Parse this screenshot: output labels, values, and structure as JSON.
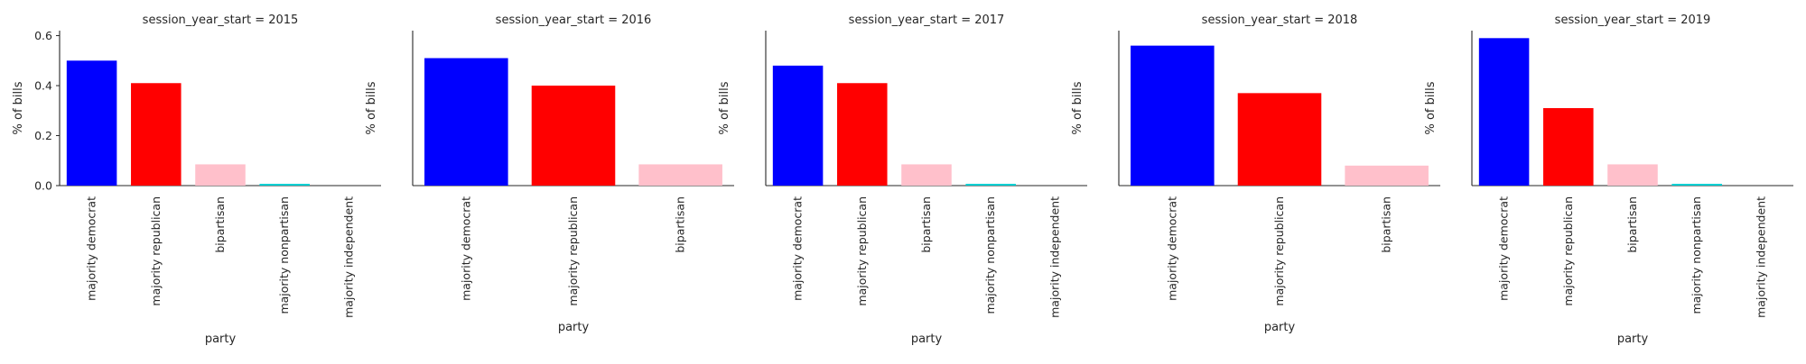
{
  "chart_data": [
    {
      "type": "bar",
      "title": "session_year_start = 2015",
      "xlabel": "party",
      "ylabel": "% of bills",
      "ylim": [
        0,
        0.62
      ],
      "yticks": [
        "0.0",
        "0.2",
        "0.4",
        "0.6"
      ],
      "categories": [
        "majority democrat",
        "majority republican",
        "bipartisan",
        "majority nonpartisan",
        "majority independent"
      ],
      "values": [
        0.5,
        0.41,
        0.085,
        0.007,
        0.0
      ],
      "colors": [
        "#0000ff",
        "#ff0000",
        "#ffc0cb",
        "#00ced1",
        "#00ced1"
      ]
    },
    {
      "type": "bar",
      "title": "session_year_start = 2016",
      "xlabel": "party",
      "ylabel": "% of bills",
      "ylim": [
        0,
        0.62
      ],
      "categories": [
        "majority democrat",
        "majority republican",
        "bipartisan"
      ],
      "values": [
        0.51,
        0.4,
        0.085
      ],
      "colors": [
        "#0000ff",
        "#ff0000",
        "#ffc0cb"
      ]
    },
    {
      "type": "bar",
      "title": "session_year_start = 2017",
      "xlabel": "party",
      "ylabel": "% of bills",
      "ylim": [
        0,
        0.62
      ],
      "categories": [
        "majority democrat",
        "majority republican",
        "bipartisan",
        "majority nonpartisan",
        "majority independent"
      ],
      "values": [
        0.48,
        0.41,
        0.085,
        0.007,
        0.0
      ],
      "colors": [
        "#0000ff",
        "#ff0000",
        "#ffc0cb",
        "#00ced1",
        "#00ced1"
      ]
    },
    {
      "type": "bar",
      "title": "session_year_start = 2018",
      "xlabel": "party",
      "ylabel": "% of bills",
      "ylim": [
        0,
        0.62
      ],
      "categories": [
        "majority democrat",
        "majority republican",
        "bipartisan"
      ],
      "values": [
        0.56,
        0.37,
        0.08
      ],
      "colors": [
        "#0000ff",
        "#ff0000",
        "#ffc0cb"
      ]
    },
    {
      "type": "bar",
      "title": "session_year_start = 2019",
      "xlabel": "party",
      "ylabel": "% of bills",
      "ylim": [
        0,
        0.62
      ],
      "categories": [
        "majority democrat",
        "majority republican",
        "bipartisan",
        "majority nonpartisan",
        "majority independent"
      ],
      "values": [
        0.59,
        0.31,
        0.085,
        0.007,
        0.0
      ],
      "colors": [
        "#0000ff",
        "#ff0000",
        "#ffc0cb",
        "#00ced1",
        "#00ced1"
      ]
    }
  ]
}
